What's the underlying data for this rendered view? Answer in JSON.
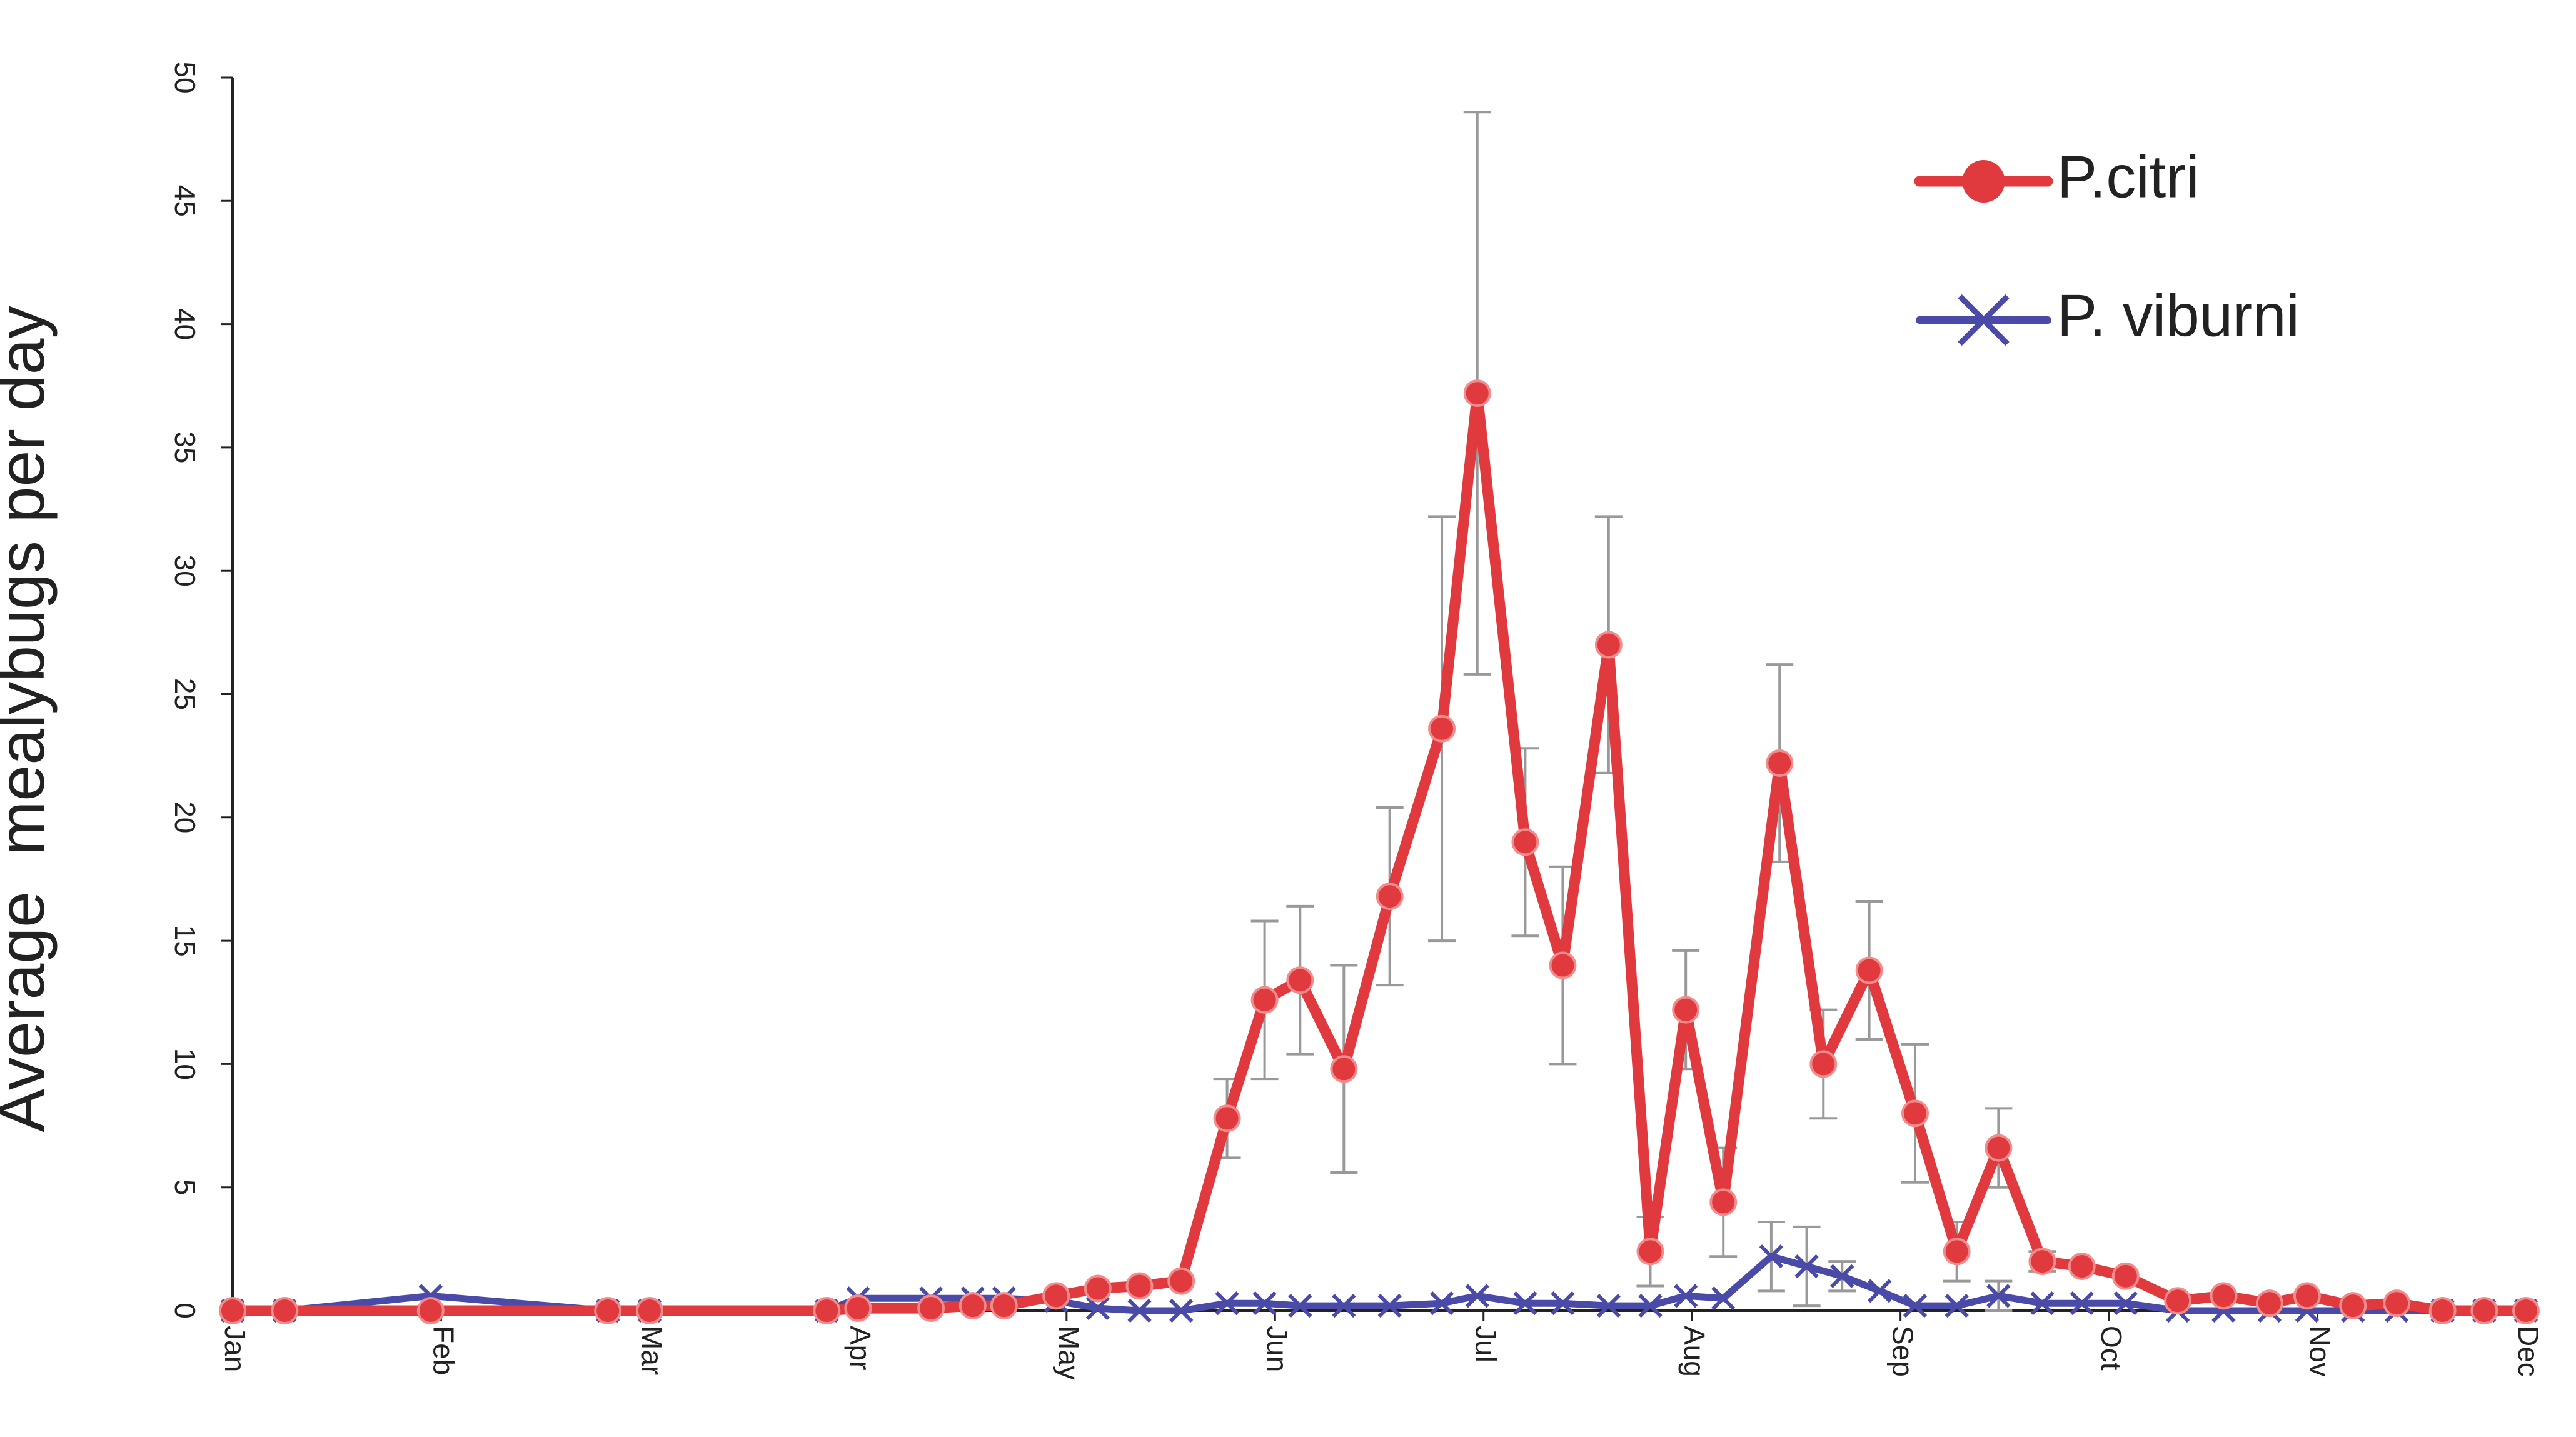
{
  "colors": {
    "citri": "#e03a3e",
    "citri_marker_edge": "#f28c8c",
    "viburni": "#4a4aa8",
    "error_bar": "#999999",
    "axis": "#222222"
  },
  "chart_data": {
    "type": "line",
    "title": "",
    "xlabel": "",
    "ylabel": "Average  mealybugs per day",
    "x_ticks": [
      "Jan",
      "Feb",
      "Mar",
      "Apr",
      "May",
      "Jun",
      "Jul",
      "Aug",
      "Sep",
      "Oct",
      "Nov",
      "Dec"
    ],
    "xlim": [
      0,
      11
    ],
    "ylim": [
      0,
      50
    ],
    "y_ticks": [
      0,
      5,
      10,
      15,
      20,
      25,
      30,
      35,
      40,
      45,
      50
    ],
    "grid": false,
    "legend_position": "top-right",
    "series": [
      {
        "name": "P.citri",
        "marker": "circle",
        "points": [
          {
            "x": 0.0,
            "y": 0
          },
          {
            "x": 0.25,
            "y": 0
          },
          {
            "x": 0.95,
            "y": 0
          },
          {
            "x": 1.8,
            "y": 0
          },
          {
            "x": 2.0,
            "y": 0
          },
          {
            "x": 2.85,
            "y": 0
          },
          {
            "x": 3.0,
            "y": 0.1
          },
          {
            "x": 3.35,
            "y": 0.1
          },
          {
            "x": 3.55,
            "y": 0.2
          },
          {
            "x": 3.7,
            "y": 0.2
          },
          {
            "x": 3.95,
            "y": 0.6
          },
          {
            "x": 4.15,
            "y": 0.9
          },
          {
            "x": 4.35,
            "y": 1.0
          },
          {
            "x": 4.55,
            "y": 1.2
          },
          {
            "x": 4.77,
            "y": 7.8,
            "err": 1.6
          },
          {
            "x": 4.95,
            "y": 12.6,
            "err": 3.2
          },
          {
            "x": 5.12,
            "y": 13.4,
            "err": 3.0
          },
          {
            "x": 5.33,
            "y": 9.8,
            "err": 4.2
          },
          {
            "x": 5.55,
            "y": 16.8,
            "err": 3.6
          },
          {
            "x": 5.8,
            "y": 23.6,
            "err": 8.6
          },
          {
            "x": 5.97,
            "y": 37.2,
            "err": 11.4
          },
          {
            "x": 6.2,
            "y": 19.0,
            "err": 3.8
          },
          {
            "x": 6.38,
            "y": 14.0,
            "err": 4.0
          },
          {
            "x": 6.6,
            "y": 27.0,
            "err": 5.2
          },
          {
            "x": 6.8,
            "y": 2.4,
            "err": 1.4
          },
          {
            "x": 6.97,
            "y": 12.2,
            "err": 2.4
          },
          {
            "x": 7.15,
            "y": 4.4,
            "err": 2.2
          },
          {
            "x": 7.42,
            "y": 22.2,
            "err": 4.0
          },
          {
            "x": 7.63,
            "y": 10.0,
            "err": 2.2
          },
          {
            "x": 7.85,
            "y": 13.8,
            "err": 2.8
          },
          {
            "x": 8.07,
            "y": 8.0,
            "err": 2.8
          },
          {
            "x": 8.27,
            "y": 2.4,
            "err": 1.2
          },
          {
            "x": 8.47,
            "y": 6.6,
            "err": 1.6
          },
          {
            "x": 8.68,
            "y": 2.0,
            "err": 0.4
          },
          {
            "x": 8.87,
            "y": 1.8
          },
          {
            "x": 9.08,
            "y": 1.4
          },
          {
            "x": 9.33,
            "y": 0.4
          },
          {
            "x": 9.55,
            "y": 0.6
          },
          {
            "x": 9.77,
            "y": 0.3
          },
          {
            "x": 9.95,
            "y": 0.6
          },
          {
            "x": 10.17,
            "y": 0.2
          },
          {
            "x": 10.38,
            "y": 0.3
          },
          {
            "x": 10.6,
            "y": 0.0
          },
          {
            "x": 10.8,
            "y": 0.0
          },
          {
            "x": 11.0,
            "y": 0.0
          }
        ]
      },
      {
        "name": "P. viburni",
        "marker": "x",
        "points": [
          {
            "x": 0.0,
            "y": 0
          },
          {
            "x": 0.25,
            "y": 0
          },
          {
            "x": 0.95,
            "y": 0.6
          },
          {
            "x": 1.8,
            "y": 0
          },
          {
            "x": 2.0,
            "y": 0
          },
          {
            "x": 2.85,
            "y": 0
          },
          {
            "x": 3.0,
            "y": 0.5
          },
          {
            "x": 3.35,
            "y": 0.5
          },
          {
            "x": 3.55,
            "y": 0.5
          },
          {
            "x": 3.7,
            "y": 0.5
          },
          {
            "x": 3.95,
            "y": 0.4
          },
          {
            "x": 4.15,
            "y": 0.1
          },
          {
            "x": 4.35,
            "y": 0.0
          },
          {
            "x": 4.55,
            "y": 0.0
          },
          {
            "x": 4.77,
            "y": 0.3
          },
          {
            "x": 4.95,
            "y": 0.3
          },
          {
            "x": 5.12,
            "y": 0.2
          },
          {
            "x": 5.33,
            "y": 0.2
          },
          {
            "x": 5.55,
            "y": 0.2
          },
          {
            "x": 5.8,
            "y": 0.3
          },
          {
            "x": 5.97,
            "y": 0.6
          },
          {
            "x": 6.2,
            "y": 0.3
          },
          {
            "x": 6.38,
            "y": 0.3
          },
          {
            "x": 6.6,
            "y": 0.2
          },
          {
            "x": 6.8,
            "y": 0.2
          },
          {
            "x": 6.97,
            "y": 0.6
          },
          {
            "x": 7.15,
            "y": 0.5
          },
          {
            "x": 7.38,
            "y": 2.2,
            "err": 1.4
          },
          {
            "x": 7.55,
            "y": 1.8,
            "err": 1.6
          },
          {
            "x": 7.72,
            "y": 1.4,
            "err": 0.6
          },
          {
            "x": 7.9,
            "y": 0.8
          },
          {
            "x": 8.07,
            "y": 0.2
          },
          {
            "x": 8.27,
            "y": 0.2
          },
          {
            "x": 8.47,
            "y": 0.6,
            "err": 0.6
          },
          {
            "x": 8.68,
            "y": 0.3
          },
          {
            "x": 8.87,
            "y": 0.3
          },
          {
            "x": 9.08,
            "y": 0.3
          },
          {
            "x": 9.33,
            "y": 0.0
          },
          {
            "x": 9.55,
            "y": 0.0
          },
          {
            "x": 9.77,
            "y": 0.0
          },
          {
            "x": 9.95,
            "y": 0.0
          },
          {
            "x": 10.17,
            "y": 0.0
          },
          {
            "x": 10.38,
            "y": 0.0
          },
          {
            "x": 10.6,
            "y": 0.0
          },
          {
            "x": 10.8,
            "y": 0.0
          },
          {
            "x": 11.0,
            "y": 0.0
          }
        ]
      }
    ]
  }
}
